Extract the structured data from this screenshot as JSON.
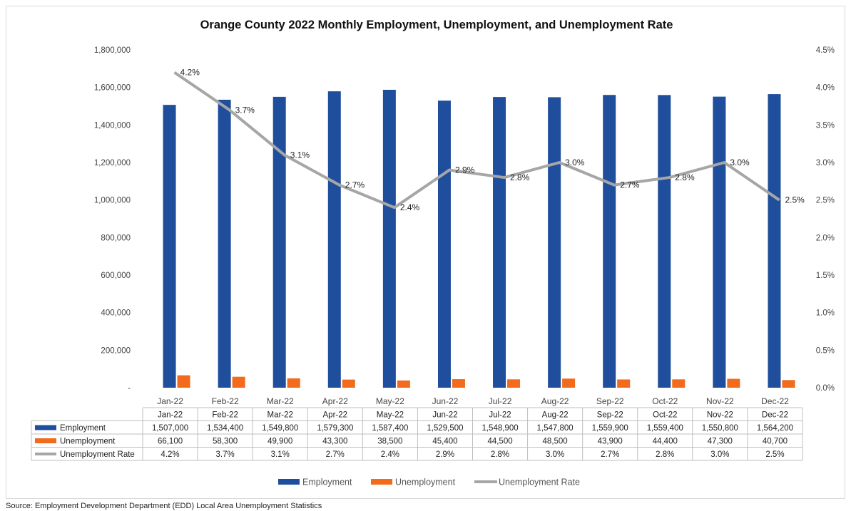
{
  "chart_data": {
    "type": "bar",
    "title": "Orange County 2022 Monthly Employment, Unemployment, and Unemployment Rate",
    "categories": [
      "Jan-22",
      "Feb-22",
      "Mar-22",
      "Apr-22",
      "May-22",
      "Jun-22",
      "Jul-22",
      "Aug-22",
      "Sep-22",
      "Oct-22",
      "Nov-22",
      "Dec-22"
    ],
    "series": [
      {
        "name": "Employment",
        "kind": "bar",
        "axis": "left",
        "color": "#1f4e9c",
        "values": [
          1507000,
          1534400,
          1549800,
          1579300,
          1587400,
          1529500,
          1548900,
          1547800,
          1559900,
          1559400,
          1550800,
          1564200
        ],
        "labels": [
          "1,507,000",
          "1,534,400",
          "1,549,800",
          "1,579,300",
          "1,587,400",
          "1,529,500",
          "1,548,900",
          "1,547,800",
          "1,559,900",
          "1,559,400",
          "1,550,800",
          "1,564,200"
        ]
      },
      {
        "name": "Unemployment",
        "kind": "bar",
        "axis": "left",
        "color": "#f26a1b",
        "values": [
          66100,
          58300,
          49900,
          43300,
          38500,
          45400,
          44500,
          48500,
          43900,
          44400,
          47300,
          40700
        ],
        "labels": [
          "66,100",
          "58,300",
          "49,900",
          "43,300",
          "38,500",
          "45,400",
          "44,500",
          "48,500",
          "43,900",
          "44,400",
          "47,300",
          "40,700"
        ]
      },
      {
        "name": "Unemployment Rate",
        "kind": "line",
        "axis": "right",
        "color": "#a6a6a6",
        "values": [
          4.2,
          3.7,
          3.1,
          2.7,
          2.4,
          2.9,
          2.8,
          3.0,
          2.7,
          2.8,
          3.0,
          2.5
        ],
        "labels": [
          "4.2%",
          "3.7%",
          "3.1%",
          "2.7%",
          "2.4%",
          "2.9%",
          "2.8%",
          "3.0%",
          "2.7%",
          "2.8%",
          "3.0%",
          "2.5%"
        ]
      }
    ],
    "y_left": {
      "min": 0,
      "max": 1800000,
      "ticks": [
        "-",
        "200,000",
        "400,000",
        "600,000",
        "800,000",
        "1,000,000",
        "1,200,000",
        "1,400,000",
        "1,600,000",
        "1,800,000"
      ]
    },
    "y_right": {
      "min": 0,
      "max": 4.5,
      "ticks": [
        "0.0%",
        "0.5%",
        "1.0%",
        "1.5%",
        "2.0%",
        "2.5%",
        "3.0%",
        "3.5%",
        "4.0%",
        "4.5%"
      ]
    },
    "grid": false,
    "legend": "bottom",
    "data_table": true
  },
  "source_note": "Source: Employment Development Department (EDD) Local Area Unemployment Statistics"
}
